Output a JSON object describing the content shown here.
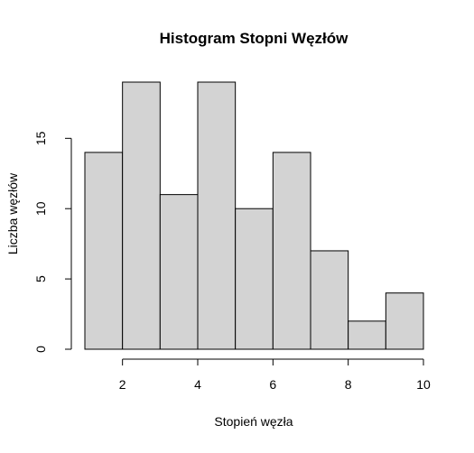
{
  "chart_data": {
    "type": "bar",
    "title": "Histogram Stopni Węzłów",
    "xlabel": "Stopień węzła",
    "ylabel": "Liczba węzłów",
    "bins": [
      [
        1,
        2
      ],
      [
        2,
        3
      ],
      [
        3,
        4
      ],
      [
        4,
        5
      ],
      [
        5,
        6
      ],
      [
        6,
        7
      ],
      [
        7,
        8
      ],
      [
        8,
        9
      ],
      [
        9,
        10
      ]
    ],
    "values": [
      14,
      19,
      11,
      19,
      10,
      14,
      7,
      2,
      4
    ],
    "xlim": [
      1,
      10
    ],
    "ylim": [
      0,
      19
    ],
    "x_ticks": [
      2,
      4,
      6,
      8,
      10
    ],
    "y_ticks": [
      0,
      5,
      10,
      15
    ],
    "grid": false,
    "bar_color": "#d3d3d3",
    "edge_color": "#000000"
  }
}
